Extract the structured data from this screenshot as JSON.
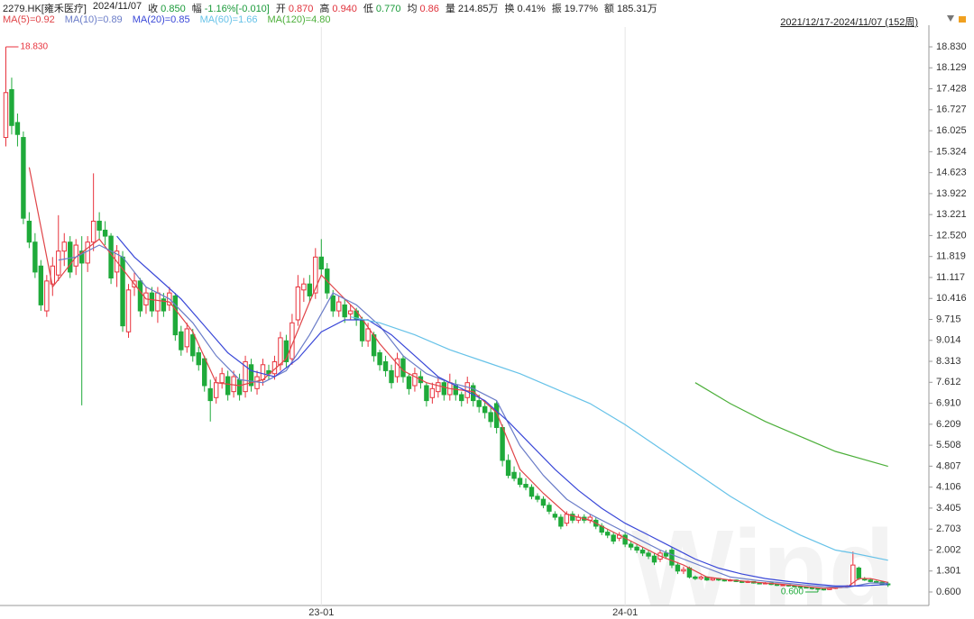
{
  "header": {
    "code": "2279.HK[雍禾医疗]",
    "date": "2024/11/07",
    "range": "2021/12/17-2024/11/07 (152周)",
    "fields": [
      {
        "label": "收",
        "value": "0.850",
        "color": "#1a9a3a"
      },
      {
        "label": "幅",
        "value": "-1.16%[-0.010]",
        "color": "#1a9a3a"
      },
      {
        "label": "开",
        "value": "0.870",
        "color": "#e0303a"
      },
      {
        "label": "高",
        "value": "0.940",
        "color": "#e0303a"
      },
      {
        "label": "低",
        "value": "0.770",
        "color": "#1a9a3a"
      },
      {
        "label": "均",
        "value": "0.86",
        "color": "#e0303a"
      },
      {
        "label": "量",
        "value": "214.85万",
        "color": "#222"
      },
      {
        "label": "换",
        "value": "0.41%",
        "color": "#222"
      },
      {
        "label": "振",
        "value": "19.77%",
        "color": "#222"
      },
      {
        "label": "额",
        "value": "185.31万",
        "color": "#222"
      }
    ]
  },
  "chart_data": {
    "type": "candlestick",
    "watermark": "Wind",
    "up_color": "#e8323c",
    "down_color": "#1faa3a",
    "high_label": "18.830",
    "low_label": "0.600",
    "xlim": [
      -1,
      158
    ],
    "xticks": [
      {
        "value": 54,
        "label": "23-01"
      },
      {
        "value": 106,
        "label": "24-01"
      }
    ],
    "ylim": [
      0.148,
      19.493
    ],
    "yticks": [
      {
        "value": 0.6,
        "label": "0.600"
      },
      {
        "value": 1.301,
        "label": "1.301"
      },
      {
        "value": 2.002,
        "label": "2.002"
      },
      {
        "value": 2.703,
        "label": "2.703"
      },
      {
        "value": 3.405,
        "label": "3.405"
      },
      {
        "value": 4.106,
        "label": "4.106"
      },
      {
        "value": 4.807,
        "label": "4.807"
      },
      {
        "value": 5.508,
        "label": "5.508"
      },
      {
        "value": 6.209,
        "label": "6.209"
      },
      {
        "value": 6.91,
        "label": "6.910"
      },
      {
        "value": 7.612,
        "label": "7.612"
      },
      {
        "value": 8.313,
        "label": "8.313"
      },
      {
        "value": 9.014,
        "label": "9.014"
      },
      {
        "value": 9.715,
        "label": "9.715"
      },
      {
        "value": 10.416,
        "label": "10.416"
      },
      {
        "value": 11.117,
        "label": "11.117"
      },
      {
        "value": 11.819,
        "label": "11.819"
      },
      {
        "value": 12.52,
        "label": "12.520"
      },
      {
        "value": 13.221,
        "label": "13.221"
      },
      {
        "value": 13.922,
        "label": "13.922"
      },
      {
        "value": 14.623,
        "label": "14.623"
      },
      {
        "value": 15.324,
        "label": "15.324"
      },
      {
        "value": 16.025,
        "label": "16.025"
      },
      {
        "value": 16.727,
        "label": "16.727"
      },
      {
        "value": 17.428,
        "label": "17.428"
      },
      {
        "value": 18.129,
        "label": "18.129"
      },
      {
        "value": 18.83,
        "label": "18.830"
      }
    ],
    "candles": [
      [
        15.8,
        18.83,
        15.5,
        17.3
      ],
      [
        17.4,
        17.8,
        15.9,
        16.2
      ],
      [
        16.3,
        16.6,
        15.5,
        15.9
      ],
      [
        15.8,
        16.0,
        12.9,
        13.1
      ],
      [
        13.0,
        13.3,
        12.1,
        12.3
      ],
      [
        12.3,
        12.6,
        11.1,
        11.3
      ],
      [
        11.5,
        11.7,
        10.0,
        10.2
      ],
      [
        10.0,
        11.2,
        9.8,
        11.0
      ],
      [
        10.9,
        11.8,
        10.5,
        11.5
      ],
      [
        11.2,
        13.2,
        11.0,
        12.0
      ],
      [
        12.0,
        12.6,
        11.5,
        12.3
      ],
      [
        12.3,
        12.5,
        11.1,
        11.3
      ],
      [
        11.5,
        12.4,
        11.2,
        12.2
      ],
      [
        12.0,
        12.5,
        6.84,
        11.6
      ],
      [
        11.6,
        12.5,
        11.3,
        12.3
      ],
      [
        12.3,
        14.6,
        12.0,
        13.0
      ],
      [
        13.0,
        13.3,
        12.4,
        12.7
      ],
      [
        12.7,
        13.0,
        12.2,
        12.5
      ],
      [
        12.5,
        12.6,
        10.9,
        11.1
      ],
      [
        11.3,
        12.2,
        10.8,
        12.0
      ],
      [
        11.8,
        12.0,
        9.3,
        9.5
      ],
      [
        9.3,
        10.9,
        9.1,
        10.7
      ],
      [
        10.8,
        11.3,
        10.5,
        11.0
      ],
      [
        11.0,
        11.1,
        9.8,
        10.0
      ],
      [
        10.2,
        10.8,
        9.9,
        10.6
      ],
      [
        10.6,
        10.8,
        9.8,
        10.0
      ],
      [
        10.0,
        10.8,
        9.6,
        10.6
      ],
      [
        10.4,
        10.6,
        9.8,
        10.0
      ],
      [
        10.2,
        10.8,
        10.0,
        10.6
      ],
      [
        10.5,
        10.6,
        9.0,
        9.2
      ],
      [
        9.3,
        9.5,
        8.5,
        8.7
      ],
      [
        8.8,
        9.6,
        8.6,
        9.4
      ],
      [
        9.2,
        9.4,
        8.3,
        8.5
      ],
      [
        8.6,
        8.8,
        8.0,
        8.2
      ],
      [
        8.4,
        8.5,
        7.3,
        7.5
      ],
      [
        7.4,
        7.7,
        6.3,
        7.0
      ],
      [
        7.1,
        7.8,
        6.9,
        7.6
      ],
      [
        7.6,
        8.1,
        7.4,
        7.9
      ],
      [
        7.8,
        8.0,
        7.0,
        7.2
      ],
      [
        7.3,
        8.0,
        7.1,
        7.8
      ],
      [
        7.7,
        7.9,
        7.0,
        7.2
      ],
      [
        7.3,
        8.5,
        7.1,
        8.3
      ],
      [
        8.2,
        8.4,
        7.3,
        7.5
      ],
      [
        7.4,
        8.0,
        7.2,
        7.8
      ],
      [
        7.7,
        8.4,
        7.5,
        8.2
      ],
      [
        8.0,
        8.2,
        7.7,
        7.9
      ],
      [
        7.9,
        8.5,
        7.7,
        8.3
      ],
      [
        8.2,
        9.3,
        8.0,
        9.1
      ],
      [
        9.0,
        9.2,
        8.1,
        8.3
      ],
      [
        8.4,
        9.9,
        8.2,
        9.6
      ],
      [
        9.7,
        11.2,
        9.5,
        10.8
      ],
      [
        10.7,
        11.1,
        10.3,
        10.9
      ],
      [
        10.9,
        11.2,
        10.3,
        10.5
      ],
      [
        10.6,
        12.1,
        10.4,
        11.8
      ],
      [
        11.8,
        12.4,
        11.2,
        11.4
      ],
      [
        11.4,
        11.6,
        10.4,
        10.6
      ],
      [
        10.5,
        10.7,
        9.8,
        10.0
      ],
      [
        10.0,
        10.5,
        9.8,
        10.3
      ],
      [
        10.2,
        10.4,
        9.6,
        9.8
      ],
      [
        9.9,
        10.2,
        9.7,
        10.0
      ],
      [
        10.0,
        10.1,
        9.5,
        9.7
      ],
      [
        9.7,
        9.8,
        8.8,
        9.0
      ],
      [
        9.0,
        9.6,
        8.8,
        9.4
      ],
      [
        9.2,
        9.3,
        8.3,
        8.5
      ],
      [
        8.6,
        8.7,
        8.0,
        8.2
      ],
      [
        8.3,
        8.5,
        7.8,
        8.0
      ],
      [
        8.0,
        8.2,
        7.4,
        7.6
      ],
      [
        7.8,
        8.6,
        7.6,
        8.4
      ],
      [
        8.4,
        8.5,
        7.6,
        7.8
      ],
      [
        7.8,
        7.9,
        7.2,
        7.4
      ],
      [
        7.5,
        8.1,
        7.3,
        7.9
      ],
      [
        7.8,
        8.0,
        7.4,
        7.6
      ],
      [
        7.5,
        7.6,
        6.8,
        7.0
      ],
      [
        7.1,
        7.6,
        6.9,
        7.4
      ],
      [
        7.3,
        7.8,
        7.1,
        7.6
      ],
      [
        7.6,
        7.7,
        7.0,
        7.2
      ],
      [
        7.2,
        7.9,
        7.0,
        7.6
      ],
      [
        7.5,
        7.7,
        7.0,
        7.2
      ],
      [
        7.2,
        7.3,
        6.8,
        7.0
      ],
      [
        7.1,
        7.8,
        6.9,
        7.6
      ],
      [
        7.5,
        7.6,
        6.8,
        7.0
      ],
      [
        7.0,
        7.2,
        6.6,
        6.8
      ],
      [
        6.8,
        7.0,
        6.4,
        6.6
      ],
      [
        6.6,
        6.8,
        6.1,
        6.3
      ],
      [
        6.9,
        7.0,
        5.9,
        6.1
      ],
      [
        6.1,
        6.2,
        4.8,
        5.0
      ],
      [
        5.0,
        5.2,
        4.4,
        4.5
      ],
      [
        4.6,
        4.8,
        4.3,
        4.4
      ],
      [
        4.4,
        4.6,
        4.1,
        4.2
      ],
      [
        4.2,
        4.4,
        4.0,
        4.1
      ],
      [
        4.1,
        4.2,
        3.7,
        3.8
      ],
      [
        3.8,
        3.9,
        3.6,
        3.7
      ],
      [
        3.7,
        3.8,
        3.4,
        3.5
      ],
      [
        3.5,
        3.6,
        3.2,
        3.3
      ],
      [
        3.2,
        3.3,
        3.0,
        3.1
      ],
      [
        3.1,
        3.2,
        2.7,
        2.8
      ],
      [
        2.9,
        3.3,
        2.8,
        3.2
      ],
      [
        3.2,
        3.3,
        2.9,
        3.0
      ],
      [
        3.0,
        3.2,
        2.9,
        3.1
      ],
      [
        3.1,
        3.2,
        2.9,
        3.0
      ],
      [
        3.0,
        3.2,
        2.9,
        3.1
      ],
      [
        3.0,
        3.1,
        2.7,
        2.8
      ],
      [
        2.8,
        2.9,
        2.5,
        2.6
      ],
      [
        2.6,
        2.7,
        2.4,
        2.5
      ],
      [
        2.5,
        2.6,
        2.2,
        2.3
      ],
      [
        2.4,
        2.6,
        2.3,
        2.5
      ],
      [
        2.5,
        2.6,
        2.1,
        2.2
      ],
      [
        2.2,
        2.3,
        2.0,
        2.1
      ],
      [
        2.1,
        2.2,
        1.9,
        2.0
      ],
      [
        2.0,
        2.1,
        1.8,
        1.9
      ],
      [
        1.9,
        2.0,
        1.7,
        1.8
      ],
      [
        1.8,
        1.9,
        1.5,
        1.6
      ],
      [
        1.7,
        2.0,
        1.6,
        1.9
      ],
      [
        1.9,
        2.0,
        1.7,
        1.8
      ],
      [
        2.0,
        2.1,
        1.4,
        1.5
      ],
      [
        1.5,
        1.6,
        1.2,
        1.3
      ],
      [
        1.3,
        1.45,
        1.2,
        1.35
      ],
      [
        1.4,
        1.45,
        1.05,
        1.1
      ],
      [
        1.1,
        1.15,
        1.0,
        1.05
      ],
      [
        1.05,
        1.15,
        1.0,
        1.1
      ],
      [
        1.1,
        1.12,
        0.97,
        1.0
      ],
      [
        1.0,
        1.08,
        0.97,
        1.05
      ],
      [
        1.05,
        1.07,
        0.97,
        1.0
      ],
      [
        1.0,
        1.03,
        0.95,
        0.98
      ],
      [
        0.98,
        1.04,
        0.95,
        1.0
      ],
      [
        1.0,
        1.02,
        0.93,
        0.95
      ],
      [
        0.95,
        0.97,
        0.9,
        0.92
      ],
      [
        0.92,
        0.98,
        0.9,
        0.95
      ],
      [
        0.95,
        0.96,
        0.88,
        0.9
      ],
      [
        0.9,
        0.92,
        0.86,
        0.88
      ],
      [
        0.88,
        0.93,
        0.86,
        0.9
      ],
      [
        0.9,
        0.91,
        0.83,
        0.85
      ],
      [
        0.85,
        0.87,
        0.8,
        0.82
      ],
      [
        0.82,
        0.86,
        0.8,
        0.84
      ],
      [
        0.84,
        0.85,
        0.78,
        0.8
      ],
      [
        0.8,
        0.82,
        0.76,
        0.78
      ],
      [
        0.78,
        0.8,
        0.74,
        0.76
      ],
      [
        0.76,
        0.78,
        0.72,
        0.74
      ],
      [
        0.74,
        0.76,
        0.68,
        0.72
      ],
      [
        0.72,
        0.74,
        0.6,
        0.7
      ],
      [
        0.7,
        0.73,
        0.65,
        0.68
      ],
      [
        0.68,
        0.74,
        0.66,
        0.72
      ],
      [
        0.72,
        0.77,
        0.7,
        0.75
      ],
      [
        0.75,
        0.8,
        0.73,
        0.78
      ],
      [
        0.78,
        0.83,
        0.76,
        0.8
      ],
      [
        0.8,
        1.95,
        0.78,
        1.5
      ],
      [
        1.4,
        1.45,
        1.0,
        1.05
      ],
      [
        1.05,
        1.1,
        0.97,
        1.0
      ],
      [
        1.0,
        1.05,
        0.93,
        0.95
      ],
      [
        0.95,
        0.98,
        0.9,
        0.93
      ],
      [
        0.93,
        0.95,
        0.84,
        0.86
      ],
      [
        0.87,
        0.94,
        0.77,
        0.85
      ]
    ],
    "series": [
      {
        "name": "MA(5)=0.92",
        "color": "#e04448",
        "x": [
          4,
          8,
          12,
          16,
          20,
          24,
          28,
          32,
          36,
          40,
          44,
          48,
          52,
          54,
          56,
          60,
          64,
          68,
          72,
          76,
          80,
          84,
          88,
          92,
          96,
          100,
          104,
          108,
          112,
          116,
          120,
          124,
          128,
          132,
          136,
          140,
          144,
          146,
          148,
          151
        ],
        "values": [
          14.8,
          10.8,
          11.8,
          12.4,
          11.4,
          10.4,
          10.3,
          9.3,
          7.6,
          7.5,
          7.7,
          8.4,
          10.3,
          11.2,
          10.8,
          10.0,
          8.9,
          8.0,
          7.6,
          7.4,
          7.3,
          6.6,
          4.7,
          3.9,
          3.2,
          3.0,
          2.6,
          2.2,
          1.8,
          1.5,
          1.1,
          1.0,
          0.93,
          0.87,
          0.8,
          0.72,
          0.76,
          1.05,
          1.05,
          0.92
        ]
      },
      {
        "name": "MA(10)=0.89",
        "color": "#6a7cc8",
        "x": [
          9,
          12,
          16,
          20,
          24,
          28,
          32,
          36,
          40,
          44,
          48,
          52,
          56,
          60,
          64,
          68,
          72,
          76,
          80,
          84,
          88,
          92,
          96,
          100,
          104,
          108,
          112,
          116,
          120,
          124,
          128,
          132,
          136,
          140,
          144,
          148,
          151
        ],
        "values": [
          11.7,
          11.8,
          12.2,
          11.8,
          10.8,
          10.4,
          9.6,
          8.5,
          7.7,
          7.6,
          8.0,
          9.2,
          10.6,
          10.2,
          9.5,
          8.5,
          7.9,
          7.6,
          7.4,
          7.0,
          5.5,
          4.5,
          3.7,
          3.2,
          2.8,
          2.4,
          2.0,
          1.7,
          1.4,
          1.1,
          1.0,
          0.92,
          0.85,
          0.78,
          0.75,
          0.9,
          0.89
        ]
      },
      {
        "name": "MA(20)=0.85",
        "color": "#3a48d8",
        "x": [
          19,
          22,
          26,
          30,
          34,
          38,
          42,
          46,
          50,
          54,
          58,
          62,
          66,
          70,
          74,
          78,
          82,
          86,
          90,
          94,
          98,
          102,
          106,
          110,
          114,
          118,
          122,
          126,
          130,
          134,
          138,
          142,
          146,
          151
        ],
        "values": [
          12.5,
          11.8,
          11.1,
          10.4,
          9.5,
          8.6,
          8.0,
          7.8,
          8.4,
          9.3,
          9.7,
          9.7,
          9.2,
          8.5,
          7.8,
          7.4,
          7.0,
          6.3,
          5.5,
          4.7,
          4.0,
          3.4,
          2.9,
          2.5,
          2.1,
          1.7,
          1.4,
          1.2,
          1.05,
          0.95,
          0.87,
          0.8,
          0.8,
          0.85
        ]
      },
      {
        "name": "MA(60)=1.66",
        "color": "#66c2e8",
        "x": [
          59,
          64,
          70,
          76,
          82,
          88,
          94,
          100,
          106,
          112,
          118,
          124,
          130,
          136,
          142,
          145,
          151
        ],
        "values": [
          9.8,
          9.6,
          9.2,
          8.7,
          8.3,
          7.9,
          7.4,
          6.9,
          6.2,
          5.4,
          4.6,
          3.8,
          3.1,
          2.5,
          2.0,
          1.9,
          1.66
        ]
      },
      {
        "name": "MA(120)=4.80",
        "color": "#4caf3a",
        "x": [
          118,
          124,
          130,
          136,
          142,
          151
        ],
        "values": [
          7.6,
          6.9,
          6.3,
          5.8,
          5.3,
          4.8
        ]
      }
    ]
  }
}
